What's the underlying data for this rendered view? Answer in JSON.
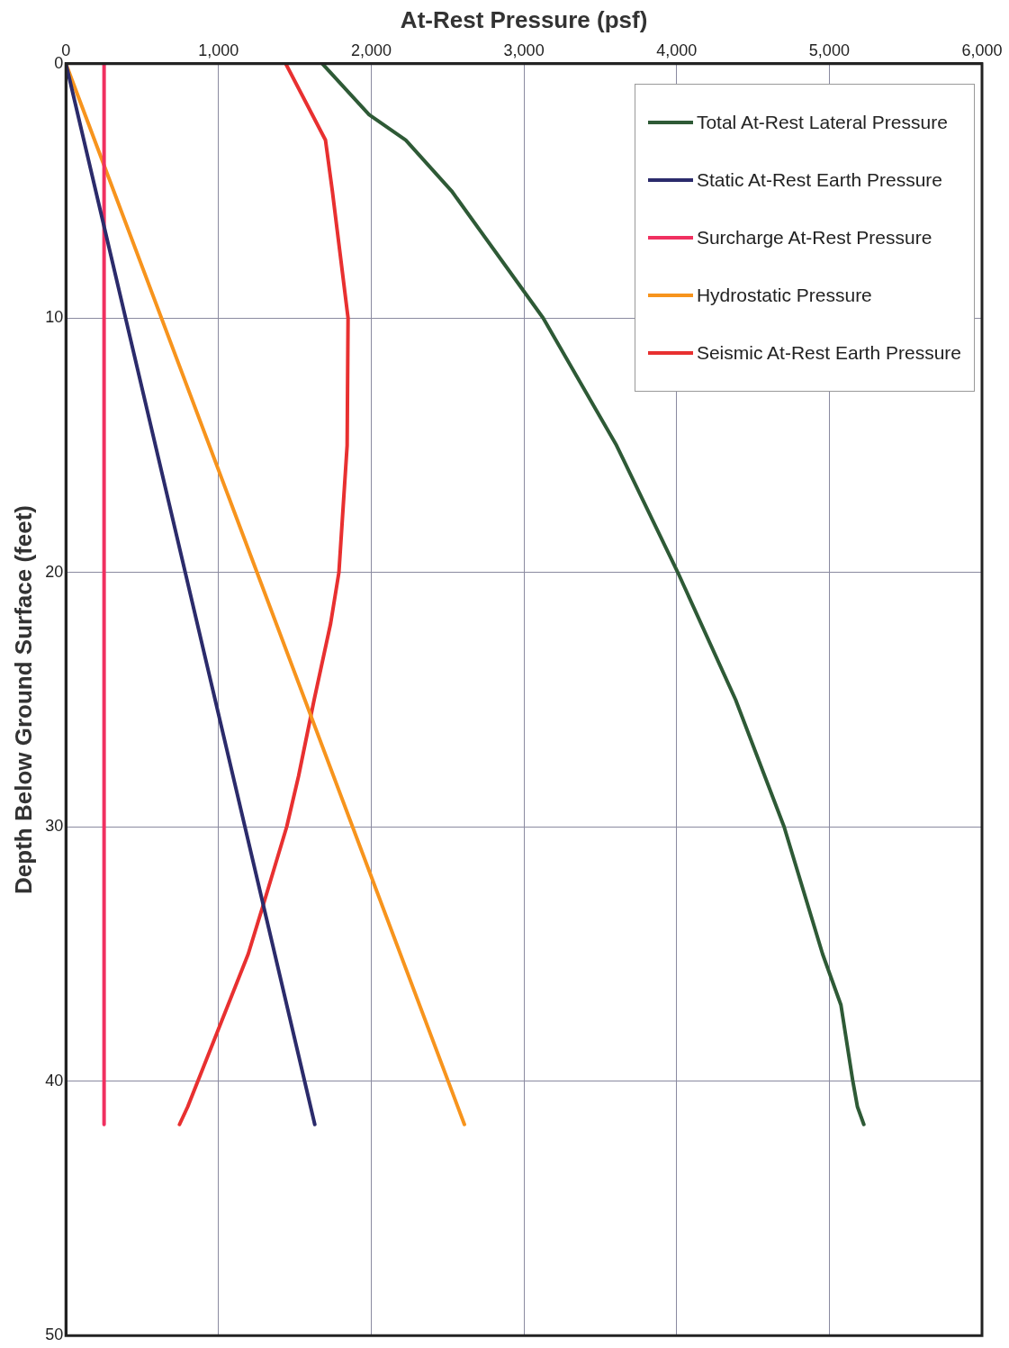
{
  "chart_data": {
    "type": "line",
    "xlabel": "At-Rest Pressure (psf)",
    "ylabel": "Depth Below Ground Surface (feet)",
    "xlim": [
      0,
      6000
    ],
    "xticks": [
      0,
      {
        "value": 1000,
        "label": "1,000"
      },
      {
        "value": 2000,
        "label": "2,000"
      },
      {
        "value": 3000,
        "label": "3,000"
      },
      {
        "value": 4000,
        "label": "4,000"
      },
      {
        "value": 5000,
        "label": "5,000"
      },
      {
        "value": 6000,
        "label": "6,000"
      }
    ],
    "ylim": [
      50,
      0
    ],
    "yticks": [
      0,
      10,
      20,
      30,
      40,
      50
    ],
    "grid": true,
    "legend": "top right",
    "marker": "none",
    "line_style": "solid",
    "series": [
      {
        "name": "Total At-Rest Lateral Pressure",
        "color": "#2e5a36",
        "x": [
          1680,
          1986,
          2226,
          2526,
          2886,
          3126,
          3606,
          4008,
          4386,
          4704,
          4956,
          5076,
          5154,
          5184,
          5226
        ],
        "values": [
          0,
          2,
          3,
          5,
          8,
          10,
          15,
          20,
          25,
          30,
          35,
          37,
          40,
          41,
          41.7
        ]
      },
      {
        "name": "Static At-Rest Earth Pressure",
        "color": "#2b2b6b",
        "x": [
          0,
          1630
        ],
        "values": [
          0,
          41.7
        ]
      },
      {
        "name": "Surcharge At-Rest Pressure",
        "color": "#f03060",
        "x": [
          250,
          250
        ],
        "values": [
          0,
          41.7
        ]
      },
      {
        "name": "Hydrostatic Pressure",
        "color": "#f7941d",
        "x": [
          0,
          2610
        ],
        "values": [
          0,
          41.7
        ]
      },
      {
        "name": "Seismic At-Rest Earth Pressure",
        "color": "#e83030",
        "x": [
          1440,
          1700,
          1745,
          1848,
          1842,
          1788,
          1734,
          1626,
          1524,
          1446,
          1296,
          1194,
          1062,
          996,
          864,
          798,
          744
        ],
        "values": [
          0,
          3,
          5,
          10,
          15,
          20,
          22,
          25,
          28,
          30,
          33,
          35,
          37,
          38,
          40,
          41,
          41.7
        ]
      }
    ]
  }
}
